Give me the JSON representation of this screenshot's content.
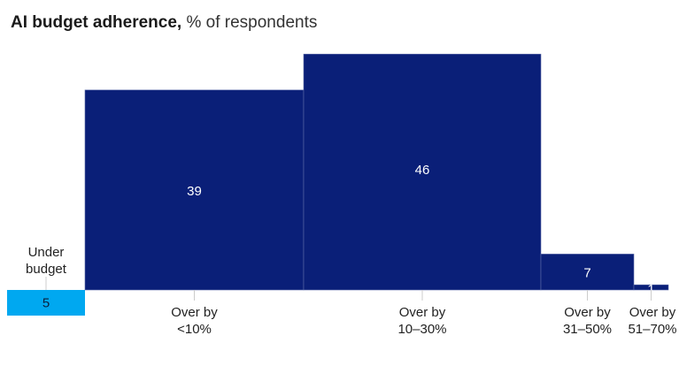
{
  "title": "AI budget adherence,",
  "subtitle": "% of respondents",
  "colors": {
    "over": "#0a1f78",
    "under": "#00a8f0",
    "value_text": "#ffffff",
    "value_text_under": "#0a1f3c"
  },
  "chart_data": {
    "type": "bar",
    "title": "AI budget adherence,",
    "subtitle": "% of respondents",
    "categories": [
      [
        "Under",
        "budget"
      ],
      [
        "Over by",
        "<10%"
      ],
      [
        "Over by",
        "10–30%"
      ],
      [
        "Over by",
        "31–50%"
      ],
      [
        "Over by",
        "51–70%"
      ]
    ],
    "values": [
      5,
      39,
      46,
      7,
      1
    ],
    "value_labels": [
      "5",
      "39",
      "46",
      "7",
      "1"
    ],
    "bin_ranges": [
      [
        -1,
        0
      ],
      [
        0,
        10
      ],
      [
        10,
        30
      ],
      [
        30,
        50
      ],
      [
        50,
        70
      ]
    ],
    "direction": [
      "below-baseline",
      "above",
      "above",
      "above",
      "above"
    ],
    "xlabel": "",
    "ylabel": "",
    "grid": false,
    "legend": "none"
  }
}
